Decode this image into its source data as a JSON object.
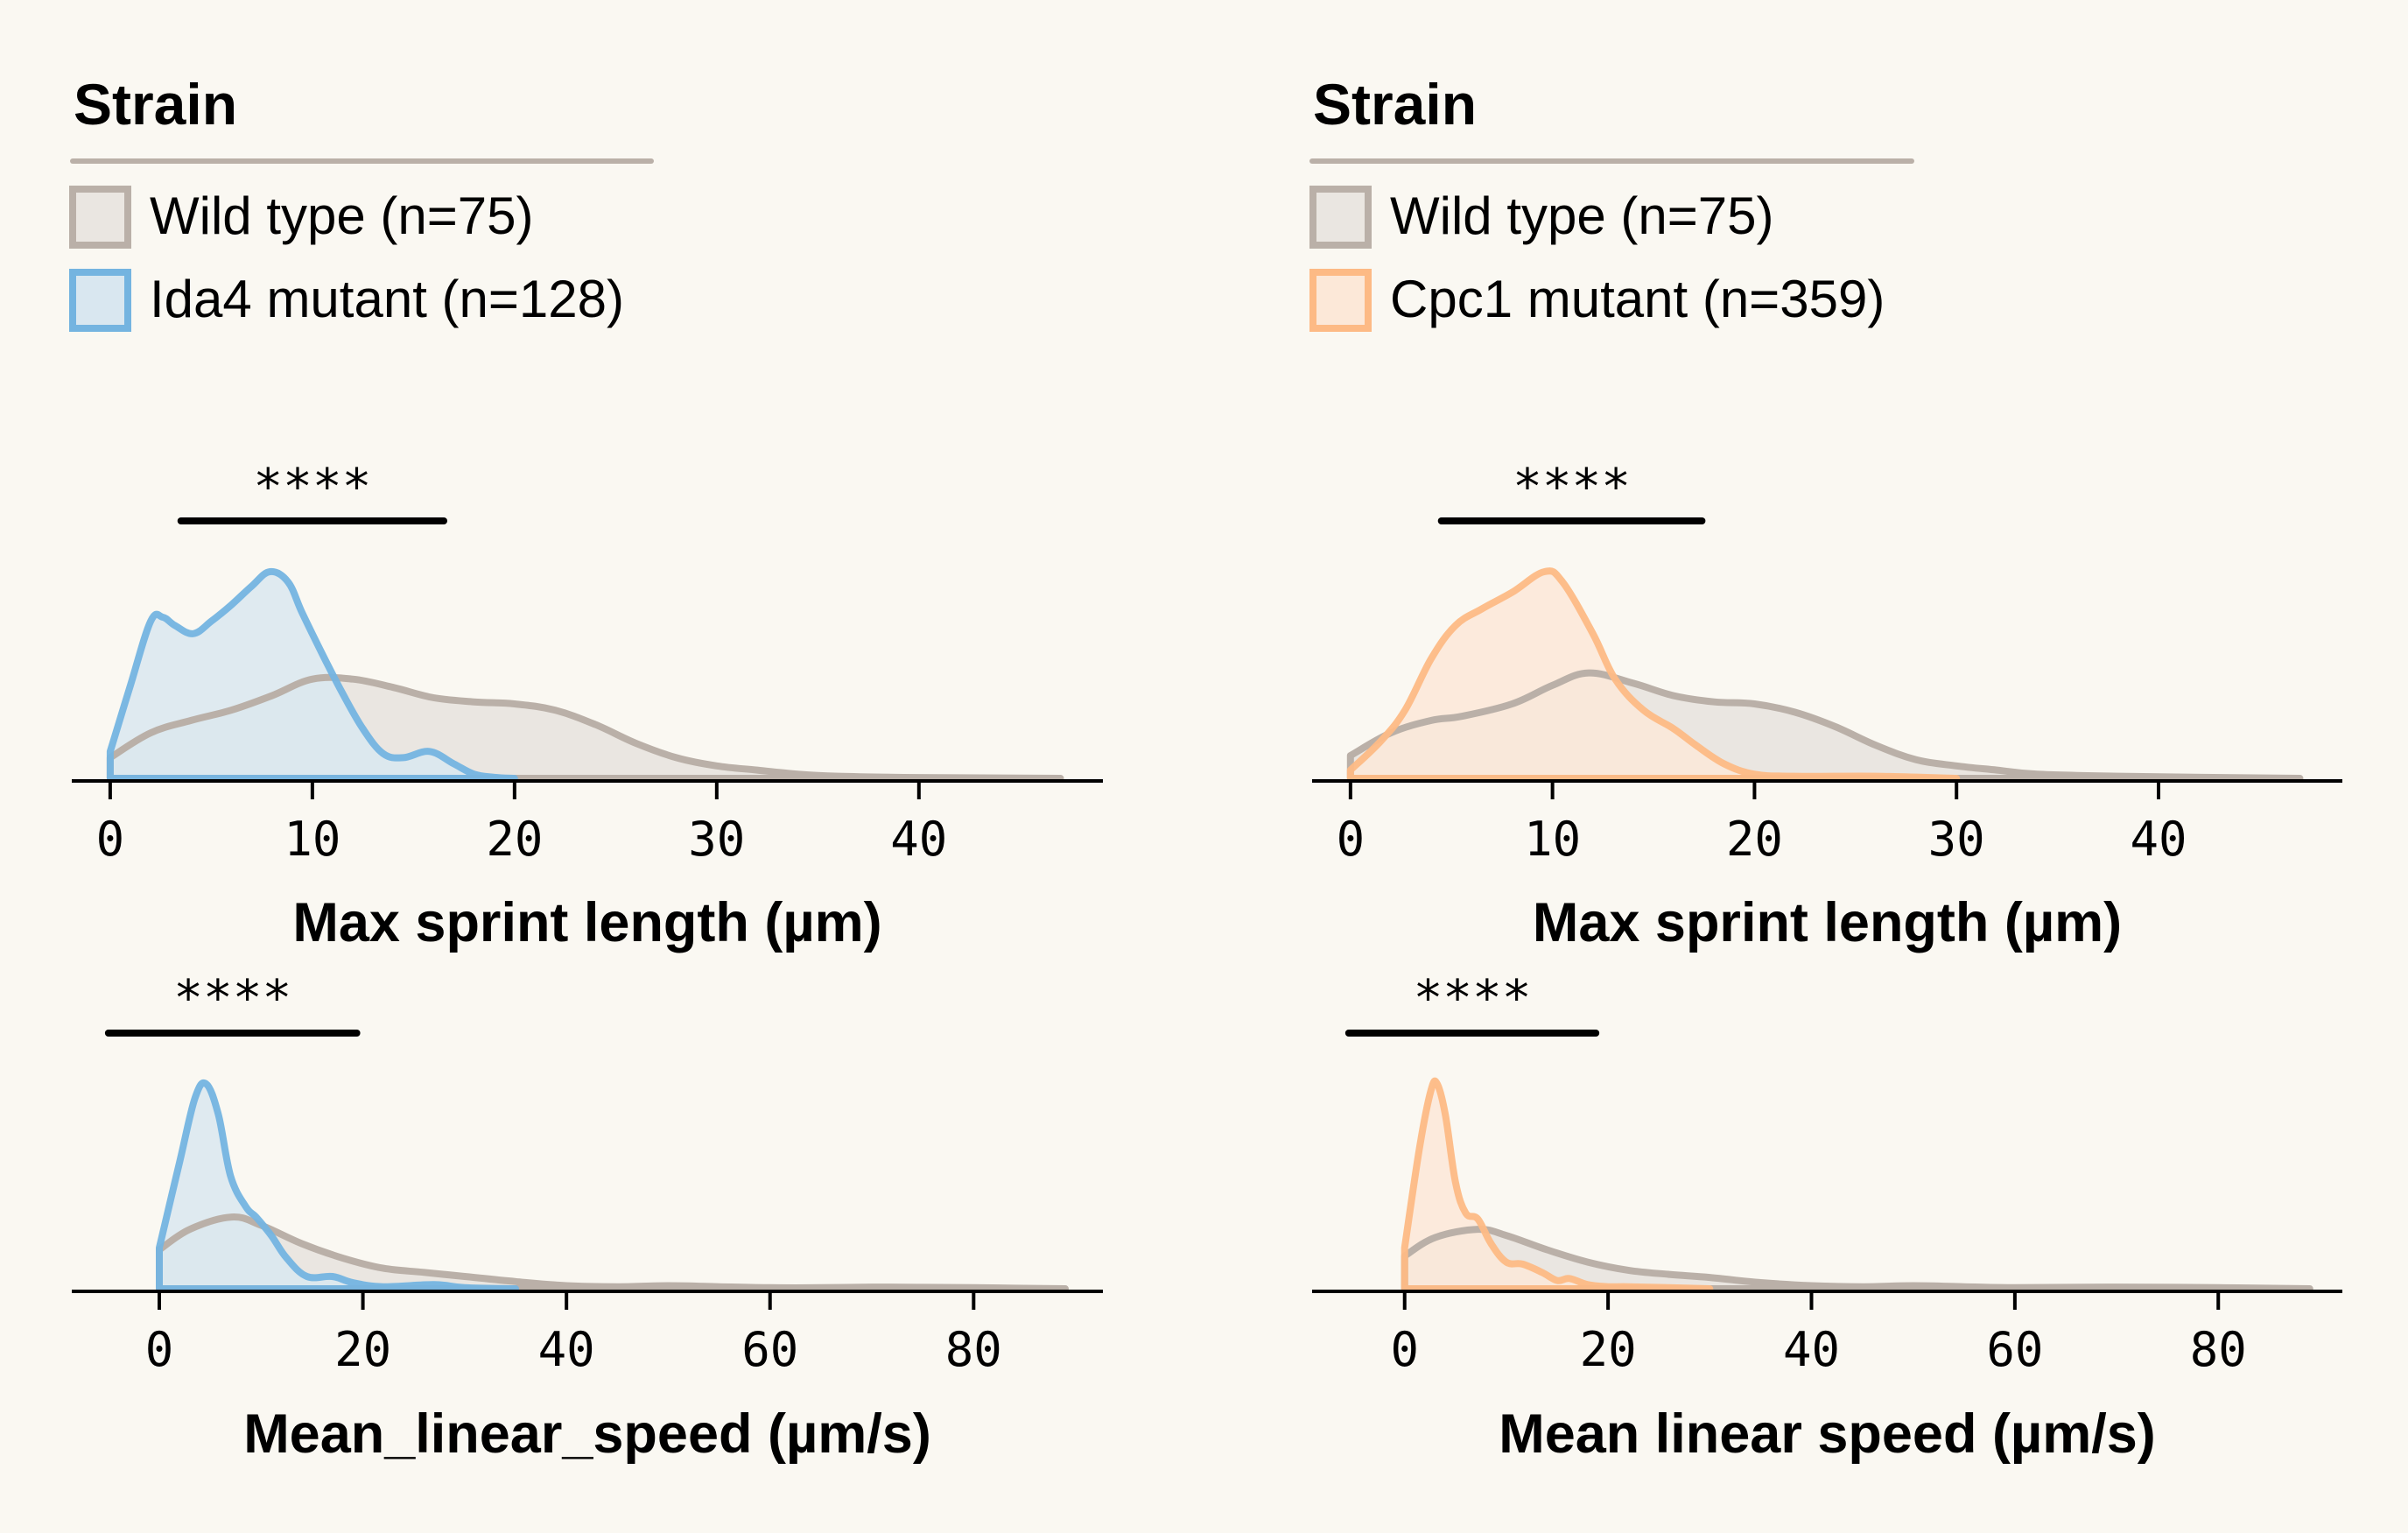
{
  "colors": {
    "background": "#FAF8F2",
    "wild_type_line": "#BAB0A8",
    "wild_type_fill": "#EAE6E1",
    "ida4_line": "#74B4E0",
    "ida4_fill": "#D9E7F0",
    "cpc1_line": "#FDBA85",
    "cpc1_fill": "#FCE8D8",
    "axis": "#000000"
  },
  "legends": [
    {
      "title": "Strain",
      "items": [
        {
          "label": "Wild type (n=75)",
          "series": "wild_type"
        },
        {
          "label": "Ida4 mutant (n=128)",
          "series": "ida4"
        }
      ]
    },
    {
      "title": "Strain",
      "items": [
        {
          "label": "Wild type (n=75)",
          "series": "wild_type"
        },
        {
          "label": "Cpc1 mutant (n=359)",
          "series": "cpc1"
        }
      ]
    }
  ],
  "chart_data": [
    {
      "type": "area",
      "panel": "top-left",
      "xlabel": "Max sprint length (µm)",
      "ylabel": "",
      "xlim": [
        -1.9,
        49.1
      ],
      "ylim": [
        0,
        1
      ],
      "xticks": [
        0,
        10,
        20,
        30,
        40
      ],
      "xtick_labels": [
        "0",
        "10",
        "20",
        "30",
        "40"
      ],
      "grid": false,
      "significance": {
        "label": "****",
        "x_range": [
          3.5,
          16.5
        ]
      },
      "series": [
        {
          "name": "Wild type (n=75)",
          "key": "wild_type",
          "x": [
            0,
            2,
            4,
            6,
            8,
            10,
            12,
            14,
            16,
            18,
            20,
            22,
            24,
            26,
            28,
            30,
            32,
            34,
            36,
            40,
            47
          ],
          "y": [
            0.1,
            0.22,
            0.28,
            0.33,
            0.4,
            0.48,
            0.48,
            0.44,
            0.39,
            0.37,
            0.36,
            0.33,
            0.26,
            0.17,
            0.1,
            0.06,
            0.04,
            0.02,
            0.01,
            0.004,
            0
          ]
        },
        {
          "name": "Ida4 mutant (n=128)",
          "key": "ida4",
          "x": [
            0,
            1,
            2,
            2.6,
            3.2,
            4.1,
            5,
            6,
            7,
            7.9,
            8.8,
            9.5,
            10.5,
            11.5,
            12.5,
            13.5,
            14.5,
            15.8,
            17,
            18,
            19,
            20
          ],
          "y": [
            0.13,
            0.45,
            0.76,
            0.78,
            0.74,
            0.7,
            0.76,
            0.84,
            0.93,
            1.0,
            0.95,
            0.8,
            0.6,
            0.41,
            0.24,
            0.12,
            0.1,
            0.13,
            0.07,
            0.02,
            0.005,
            0
          ]
        }
      ]
    },
    {
      "type": "area",
      "panel": "top-right",
      "xlabel": "Max sprint length (µm)",
      "ylabel": "",
      "xlim": [
        -1.9,
        49.1
      ],
      "ylim": [
        0,
        1
      ],
      "xticks": [
        0,
        10,
        20,
        30,
        40
      ],
      "xtick_labels": [
        "0",
        "10",
        "20",
        "30",
        "40"
      ],
      "grid": false,
      "significance": {
        "label": "****",
        "x_range": [
          4.5,
          17.4
        ]
      },
      "series": [
        {
          "name": "Wild type (n=75)",
          "key": "wild_type",
          "x": [
            0,
            2,
            4,
            5.5,
            8,
            10,
            11.8,
            14,
            16,
            18,
            20,
            22,
            24,
            26,
            28,
            30,
            32,
            34,
            38,
            47
          ],
          "y": [
            0.11,
            0.22,
            0.28,
            0.3,
            0.36,
            0.45,
            0.51,
            0.46,
            0.4,
            0.37,
            0.36,
            0.32,
            0.25,
            0.16,
            0.09,
            0.06,
            0.04,
            0.02,
            0.01,
            0
          ]
        },
        {
          "name": "Cpc1 mutant (n=359)",
          "key": "cpc1",
          "x": [
            0,
            1.5,
            2.7,
            4,
            5.2,
            6.5,
            8,
            9.6,
            10.5,
            12,
            13.1,
            14.5,
            16,
            17.1,
            18.5,
            20,
            22,
            26,
            30
          ],
          "y": [
            0.04,
            0.18,
            0.33,
            0.58,
            0.74,
            0.82,
            0.9,
            1.0,
            0.95,
            0.7,
            0.48,
            0.33,
            0.24,
            0.16,
            0.07,
            0.02,
            0.01,
            0.01,
            0
          ]
        }
      ]
    },
    {
      "type": "area",
      "panel": "bottom-left",
      "xlabel": "Mean_linear_speed (µm/s)",
      "ylabel": "",
      "xlim": [
        -8.6,
        92.7
      ],
      "ylim": [
        0,
        1
      ],
      "xticks": [
        0,
        20,
        40,
        60,
        80
      ],
      "xtick_labels": [
        "0",
        "20",
        "40",
        "60",
        "80"
      ],
      "grid": false,
      "significance": {
        "label": "****",
        "x_range": [
          -5,
          19.4
        ]
      },
      "series": [
        {
          "name": "Wild type (n=75)",
          "key": "wild_type",
          "x": [
            0,
            3,
            7.1,
            10,
            14,
            18,
            22,
            26,
            30,
            35,
            40,
            45,
            50,
            55,
            60,
            65,
            70,
            75,
            80,
            89
          ],
          "y": [
            0.19,
            0.29,
            0.35,
            0.31,
            0.22,
            0.15,
            0.1,
            0.08,
            0.06,
            0.035,
            0.015,
            0.01,
            0.015,
            0.01,
            0.005,
            0.005,
            0.008,
            0.007,
            0.005,
            0
          ]
        },
        {
          "name": "Ida4 mutant (n=128)",
          "key": "ida4",
          "x": [
            0,
            2,
            3.5,
            4.6,
            5.8,
            7,
            8.5,
            9.5,
            11,
            12.5,
            14.5,
            17,
            19,
            22,
            27,
            30,
            35
          ],
          "y": [
            0.2,
            0.62,
            0.93,
            1.0,
            0.85,
            0.55,
            0.4,
            0.35,
            0.26,
            0.15,
            0.06,
            0.06,
            0.03,
            0.01,
            0.02,
            0.005,
            0
          ]
        }
      ]
    },
    {
      "type": "area",
      "panel": "bottom-right",
      "xlabel": "Mean linear speed (µm/s)",
      "ylabel": "",
      "xlim": [
        -9.1,
        92.2
      ],
      "ylim": [
        0,
        1
      ],
      "xticks": [
        0,
        20,
        40,
        60,
        80
      ],
      "xtick_labels": [
        "0",
        "20",
        "40",
        "60",
        "80"
      ],
      "grid": false,
      "significance": {
        "label": "****",
        "x_range": [
          -5.5,
          18.8
        ]
      },
      "series": [
        {
          "name": "Wild type (n=75)",
          "key": "wild_type",
          "x": [
            0,
            3,
            7.2,
            10,
            14,
            18,
            22,
            26,
            30,
            35,
            40,
            45,
            50,
            55,
            60,
            70,
            80,
            89
          ],
          "y": [
            0.16,
            0.25,
            0.29,
            0.26,
            0.19,
            0.13,
            0.09,
            0.07,
            0.055,
            0.03,
            0.015,
            0.01,
            0.015,
            0.01,
            0.005,
            0.008,
            0.005,
            0
          ]
        },
        {
          "name": "Cpc1 mutant (n=359)",
          "key": "cpc1",
          "x": [
            0,
            1.5,
            2.6,
            3.2,
            4,
            5,
            6,
            7.2,
            8.5,
            10,
            11.6,
            13.5,
            15,
            16.2,
            18,
            20,
            22,
            26,
            30
          ],
          "y": [
            0.2,
            0.7,
            0.97,
            1.0,
            0.85,
            0.52,
            0.37,
            0.34,
            0.22,
            0.13,
            0.12,
            0.08,
            0.04,
            0.05,
            0.02,
            0.01,
            0.01,
            0.005,
            0
          ]
        }
      ]
    }
  ]
}
